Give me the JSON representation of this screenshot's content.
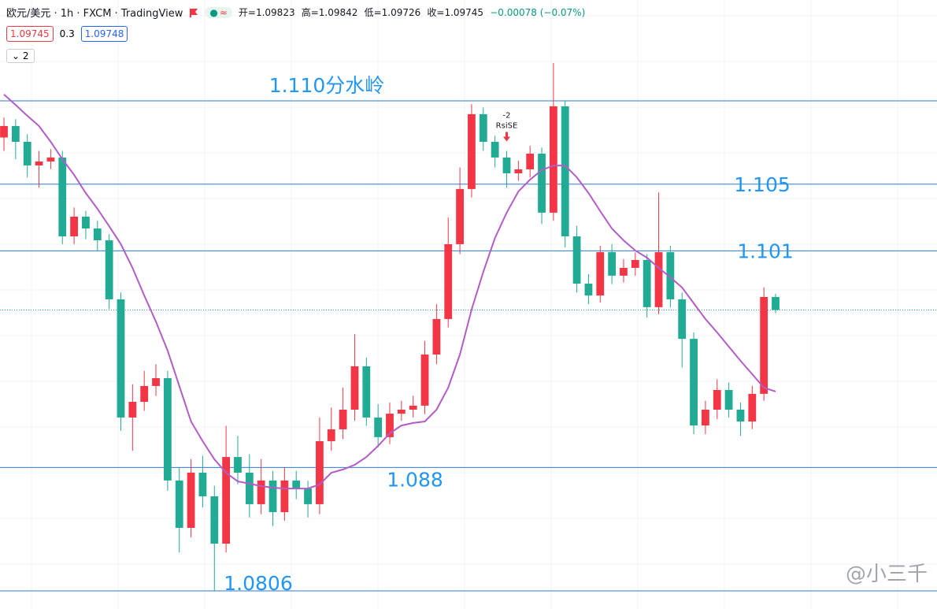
{
  "header": {
    "symbol": "欧元/美元 · 1h · FXCM · TradingView",
    "open": "开=1.09823",
    "high": "高=1.09842",
    "low": "低=1.09726",
    "close": "收=1.09745",
    "change": "−0.00078 (−0.07%)",
    "bid": "1.09745",
    "spread": "0.3",
    "ask": "1.09748",
    "indicators": "2"
  },
  "watermark": "@小三千",
  "chart_data": {
    "type": "candlestick",
    "ylim": [
      1.07951,
      1.11605
    ],
    "up_color": "#f23645",
    "down_color": "#22ab94",
    "open": [
      1.1078,
      1.10849,
      1.10754,
      1.10612,
      1.10636,
      1.1066,
      1.10187,
      1.10305,
      1.10234,
      1.10163,
      1.09809,
      1.091,
      1.09194,
      1.09289,
      1.09336,
      1.08722,
      1.08438,
      1.08769,
      1.08627,
      1.08343,
      1.08863,
      1.08769,
      1.0858,
      1.08722,
      1.08532,
      1.08722,
      1.08674,
      1.0858,
      1.08958,
      1.09029,
      1.09147,
      1.09407,
      1.091,
      1.08982,
      1.09123,
      1.09147,
      1.09171,
      1.09478,
      1.09691,
      1.1014,
      1.10471,
      1.1092,
      1.10754,
      1.1066,
      1.10565,
      1.10589,
      1.10683,
      1.10329,
      1.10967,
      1.10187,
      1.09903,
      1.09832,
      1.10092,
      1.09951,
      1.09998,
      1.10045,
      1.09762,
      1.10092,
      1.09809,
      1.09572,
      1.09052,
      1.09147,
      1.09265,
      1.09147,
      1.09076,
      1.09242,
      1.09823
    ],
    "high": [
      1.109,
      1.1089,
      1.108,
      1.107,
      1.1071,
      1.107,
      1.1036,
      1.1034,
      1.1028,
      1.102,
      1.0985,
      1.093,
      1.0938,
      1.0942,
      1.0938,
      1.088,
      1.0885,
      1.0887,
      1.0869,
      1.0905,
      1.0899,
      1.0888,
      1.0885,
      1.0878,
      1.088,
      1.0878,
      1.0872,
      1.091,
      1.0916,
      1.0928,
      1.096,
      1.0946,
      1.0918,
      1.0919,
      1.092,
      1.0923,
      1.0956,
      1.0978,
      1.103,
      1.106,
      1.1098,
      1.1096,
      1.1079,
      1.107,
      1.1064,
      1.1073,
      1.1072,
      1.11227,
      1.11,
      1.1025,
      1.0996,
      1.1013,
      1.1014,
      1.1005,
      1.1009,
      1.1008,
      1.1045,
      1.1013,
      1.0985,
      1.0961,
      1.092,
      1.0933,
      1.0931,
      1.0919,
      1.0929,
      1.0988,
      1.09842
    ],
    "low": [
      1.107,
      1.1065,
      1.1054,
      1.1048,
      1.1059,
      1.1014,
      1.1014,
      1.1017,
      1.101,
      1.0975,
      1.0902,
      1.089,
      1.0914,
      1.0923,
      1.0866,
      1.0829,
      1.0838,
      1.0856,
      1.0806,
      1.0829,
      1.087,
      1.085,
      1.0852,
      1.0845,
      1.0848,
      1.0861,
      1.085,
      1.0852,
      1.089,
      1.0897,
      1.0908,
      1.0905,
      1.0892,
      1.0894,
      1.0908,
      1.091,
      1.0912,
      1.0942,
      1.0964,
      1.1008,
      1.1042,
      1.107,
      1.106,
      1.1048,
      1.1052,
      1.1054,
      1.1026,
      1.1028,
      1.1012,
      1.0985,
      1.0978,
      1.0979,
      1.099,
      1.0991,
      1.0995,
      1.097,
      1.0972,
      1.0976,
      1.094,
      1.09,
      1.09,
      1.0909,
      1.091,
      1.0899,
      1.0903,
      1.092,
      1.09726
    ],
    "close": [
      1.10849,
      1.10754,
      1.10612,
      1.10636,
      1.1066,
      1.10187,
      1.10305,
      1.10234,
      1.10163,
      1.09809,
      1.091,
      1.09194,
      1.09289,
      1.09336,
      1.08722,
      1.08438,
      1.08769,
      1.08627,
      1.08343,
      1.08863,
      1.08769,
      1.0858,
      1.08722,
      1.08532,
      1.08722,
      1.08674,
      1.0858,
      1.08958,
      1.09029,
      1.09147,
      1.09407,
      1.091,
      1.08982,
      1.09123,
      1.09147,
      1.09171,
      1.09478,
      1.09691,
      1.1014,
      1.10471,
      1.1092,
      1.10754,
      1.1066,
      1.10565,
      1.10589,
      1.10683,
      1.10329,
      1.10967,
      1.10187,
      1.09903,
      1.09832,
      1.10092,
      1.09951,
      1.09998,
      1.10045,
      1.09762,
      1.10092,
      1.09809,
      1.09572,
      1.09052,
      1.09147,
      1.09265,
      1.09147,
      1.09076,
      1.09242,
      1.09823,
      1.09745
    ],
    "ma": {
      "color": "#b35cc8",
      "values": [
        1.11038,
        1.10976,
        1.1091,
        1.10849,
        1.10754,
        1.1065,
        1.10556,
        1.10447,
        1.10352,
        1.10248,
        1.1014,
        1.09998,
        1.09832,
        1.09676,
        1.09501,
        1.09289,
        1.09076,
        1.08958,
        1.08849,
        1.08769,
        1.08717,
        1.08703,
        1.08688,
        1.08679,
        1.08674,
        1.08674,
        1.08674,
        1.08698,
        1.08769,
        1.08788,
        1.08816,
        1.08863,
        1.0893,
        1.09005,
        1.09052,
        1.09067,
        1.09076,
        1.09147,
        1.09279,
        1.09478,
        1.09747,
        1.09974,
        1.10177,
        1.10329,
        1.10456,
        1.10527,
        1.10584,
        1.10612,
        1.10612,
        1.10541,
        1.10447,
        1.10338,
        1.10234,
        1.10163,
        1.10102,
        1.10059,
        1.09998,
        1.09941,
        1.0988,
        1.09785,
        1.09691,
        1.0961,
        1.09525,
        1.0944,
        1.0936,
        1.09279,
        1.09256
      ]
    },
    "levels": [
      {
        "value": 1.11,
        "label": "1.110分水岭"
      },
      {
        "value": 1.105,
        "label": "1.105"
      },
      {
        "value": 1.101,
        "label": "1.101"
      },
      {
        "value": 1.088,
        "label": "1.088"
      },
      {
        "value": 1.0806,
        "label": "1.0806"
      }
    ],
    "level_color": "#2f7ad0",
    "label_color": "#2196f3",
    "last_price": 1.09745,
    "signal": {
      "index": 43,
      "count": "-2",
      "name": "RsiSE"
    }
  }
}
